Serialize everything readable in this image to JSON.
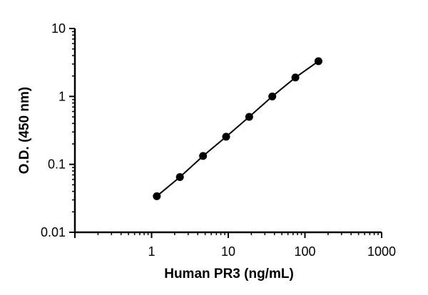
{
  "chart_data": {
    "type": "scatter",
    "title": "",
    "xlabel": "Human PR3 (ng/mL)",
    "ylabel": "O.D. (450 nm)",
    "x_scale": "log",
    "y_scale": "log",
    "xlim": [
      0.1,
      1000
    ],
    "ylim": [
      0.01,
      10
    ],
    "x_ticks": [
      {
        "value": 1,
        "label": "1"
      },
      {
        "value": 10,
        "label": "10"
      },
      {
        "value": 100,
        "label": "100"
      },
      {
        "value": 1000,
        "label": "1000"
      }
    ],
    "y_ticks": [
      {
        "value": 10,
        "label": "10"
      },
      {
        "value": 1,
        "label": "1"
      },
      {
        "value": 0.1,
        "label": "0.1"
      },
      {
        "value": 0.01,
        "label": "0.01"
      }
    ],
    "grid": false,
    "legend": "none",
    "fit_line": true,
    "series": [
      {
        "x": [
          1.17,
          2.34,
          4.69,
          9.38,
          18.75,
          37.5,
          75,
          150
        ],
        "y": [
          0.034,
          0.065,
          0.133,
          0.255,
          0.5,
          1.0,
          1.9,
          3.3
        ]
      }
    ],
    "colors": {
      "marker": "#000000",
      "line": "#000000",
      "axis": "#000000"
    }
  }
}
